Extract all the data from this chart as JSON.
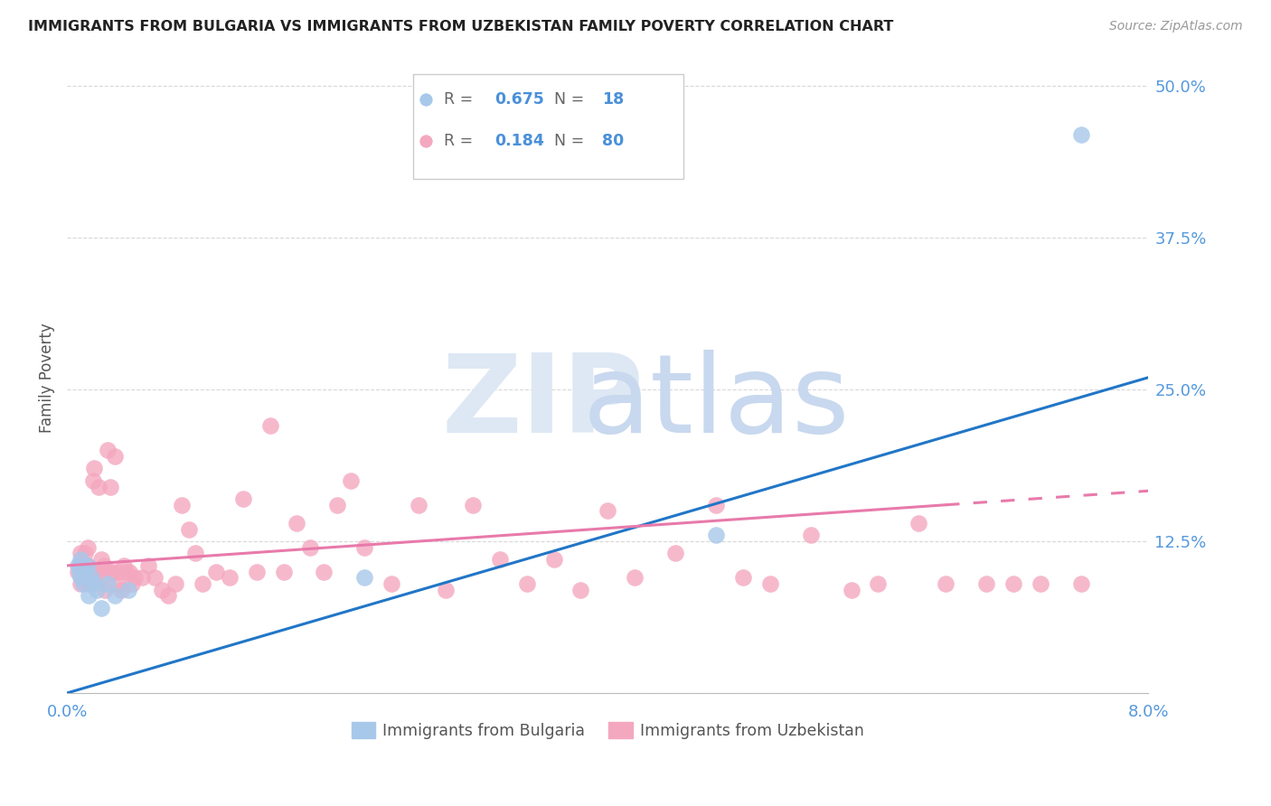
{
  "title": "IMMIGRANTS FROM BULGARIA VS IMMIGRANTS FROM UZBEKISTAN FAMILY POVERTY CORRELATION CHART",
  "source": "Source: ZipAtlas.com",
  "ylabel": "Family Poverty",
  "yticks": [
    0.0,
    0.125,
    0.25,
    0.375,
    0.5
  ],
  "ytick_labels": [
    "",
    "12.5%",
    "25.0%",
    "37.5%",
    "50.0%"
  ],
  "xlim": [
    0.0,
    0.08
  ],
  "ylim": [
    0.0,
    0.52
  ],
  "bulgaria_color": "#a8c8ea",
  "uzbekistan_color": "#f4a8c0",
  "bulgaria_line_color": "#2176c7",
  "uzbekistan_line_color": "#e87aaa",
  "legend_value_color": "#4a90d9",
  "legend_label_color": "#666666",
  "watermark_zip_color": "#dde8f4",
  "watermark_atlas_color": "#c8d8ee",
  "grid_color": "#d8d8d8",
  "bg_color": "#ffffff",
  "title_color": "#222222",
  "tick_color": "#5599dd",
  "ylabel_color": "#555555",
  "bulgaria_x": [
    0.0008,
    0.0009,
    0.001,
    0.001,
    0.0012,
    0.0013,
    0.0015,
    0.0016,
    0.0018,
    0.002,
    0.0022,
    0.0025,
    0.003,
    0.0035,
    0.0045,
    0.022,
    0.048,
    0.075
  ],
  "bulgaria_y": [
    0.105,
    0.1,
    0.095,
    0.11,
    0.09,
    0.1,
    0.105,
    0.08,
    0.095,
    0.09,
    0.085,
    0.07,
    0.09,
    0.08,
    0.085,
    0.095,
    0.13,
    0.46
  ],
  "uzbekistan_x": [
    0.0008,
    0.0009,
    0.001,
    0.001,
    0.0011,
    0.0012,
    0.0013,
    0.0014,
    0.0015,
    0.0015,
    0.0016,
    0.0017,
    0.0018,
    0.0019,
    0.002,
    0.0021,
    0.0022,
    0.0023,
    0.0025,
    0.0026,
    0.0027,
    0.0028,
    0.003,
    0.0031,
    0.0032,
    0.0034,
    0.0035,
    0.0037,
    0.0038,
    0.004,
    0.0042,
    0.0044,
    0.0046,
    0.0048,
    0.005,
    0.0055,
    0.006,
    0.0065,
    0.007,
    0.0075,
    0.008,
    0.0085,
    0.009,
    0.0095,
    0.01,
    0.011,
    0.012,
    0.013,
    0.014,
    0.015,
    0.016,
    0.017,
    0.018,
    0.019,
    0.02,
    0.021,
    0.022,
    0.024,
    0.026,
    0.028,
    0.03,
    0.032,
    0.034,
    0.036,
    0.038,
    0.04,
    0.042,
    0.045,
    0.048,
    0.05,
    0.052,
    0.055,
    0.058,
    0.06,
    0.063,
    0.065,
    0.068,
    0.07,
    0.072,
    0.075
  ],
  "uzbekistan_y": [
    0.1,
    0.105,
    0.09,
    0.115,
    0.095,
    0.1,
    0.115,
    0.095,
    0.105,
    0.12,
    0.09,
    0.1,
    0.095,
    0.175,
    0.185,
    0.1,
    0.1,
    0.17,
    0.11,
    0.095,
    0.105,
    0.085,
    0.2,
    0.1,
    0.17,
    0.1,
    0.195,
    0.09,
    0.1,
    0.085,
    0.105,
    0.1,
    0.1,
    0.09,
    0.095,
    0.095,
    0.105,
    0.095,
    0.085,
    0.08,
    0.09,
    0.155,
    0.135,
    0.115,
    0.09,
    0.1,
    0.095,
    0.16,
    0.1,
    0.22,
    0.1,
    0.14,
    0.12,
    0.1,
    0.155,
    0.175,
    0.12,
    0.09,
    0.155,
    0.085,
    0.155,
    0.11,
    0.09,
    0.11,
    0.085,
    0.15,
    0.095,
    0.115,
    0.155,
    0.095,
    0.09,
    0.13,
    0.085,
    0.09,
    0.14,
    0.09,
    0.09,
    0.09,
    0.09,
    0.09
  ]
}
